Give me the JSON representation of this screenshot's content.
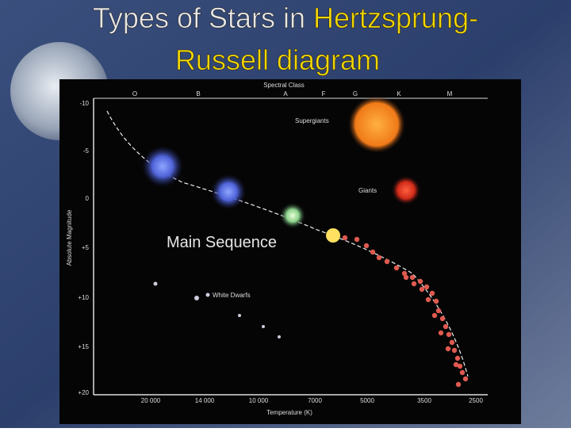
{
  "slide": {
    "title": {
      "part1": "Types of Stars in ",
      "part2": "Hertzsprung-",
      "line2": "Russell diagram"
    },
    "diagram": {
      "top_axis_label": "Spectral Class",
      "spectral_classes": [
        "O",
        "B",
        "A",
        "F",
        "G",
        "K",
        "M"
      ],
      "y_axis_label": "Absolute Magnitude",
      "y_ticks": [
        "-10",
        "-5",
        "0",
        "+5",
        "+10",
        "+15",
        "+20"
      ],
      "x_axis_label": "Temperature (K)",
      "x_ticks": [
        "20 000",
        "14 000",
        "10 000",
        "7000",
        "5000",
        "3500",
        "2500"
      ],
      "labels": {
        "supergiants": "Supergiants",
        "giants": "Giants",
        "main_sequence": "Main Sequence",
        "white_dwarfs": "White Dwarfs"
      }
    }
  }
}
